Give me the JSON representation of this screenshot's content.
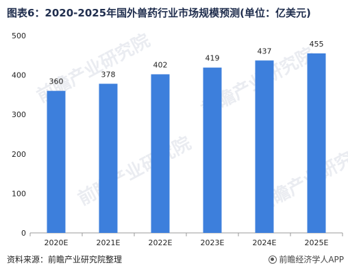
{
  "title": "图表6：2020-2025年国外兽药行业市场规模预测(单位：亿美元)",
  "source": "资料来源：前瞻产业研究院整理",
  "brand": "前瞻经济学人APP",
  "watermark": "前瞻产业研究院",
  "colors": {
    "bar": "#3d7fdc",
    "axis": "#999999",
    "text": "#222222"
  },
  "chart_data": {
    "type": "bar",
    "categories": [
      "2020E",
      "2021E",
      "2022E",
      "2023E",
      "2024E",
      "2025E"
    ],
    "values": [
      360,
      378,
      402,
      419,
      437,
      455
    ],
    "ylim": [
      0,
      500
    ],
    "yticks": [
      0,
      100,
      200,
      300,
      400,
      500
    ],
    "title": "图表6：2020-2025年国外兽药行业市场规模预测(单位：亿美元)",
    "xlabel": "",
    "ylabel": "",
    "grid": false,
    "data_labels": true
  }
}
